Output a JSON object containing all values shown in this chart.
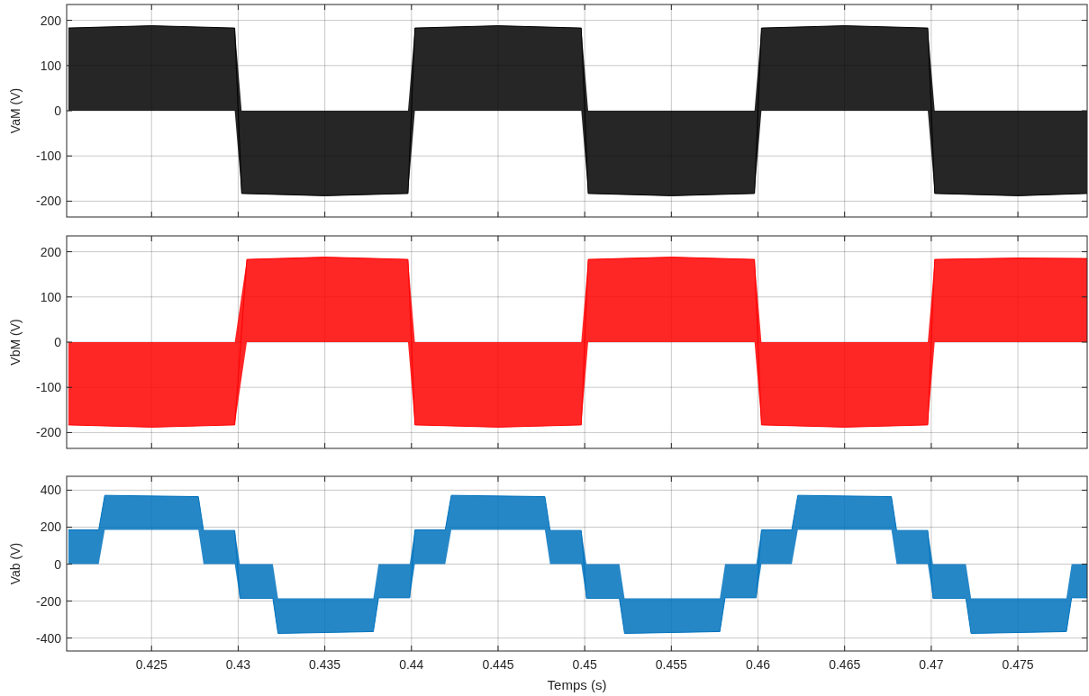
{
  "chart_data": [
    {
      "type": "line",
      "ylabel": "VaM (V)",
      "x": [
        0.4202,
        0.425,
        0.4298,
        0.4302,
        0.435,
        0.4398,
        0.4402,
        0.445,
        0.4498,
        0.4502,
        0.455,
        0.4598,
        0.4602,
        0.465,
        0.4698,
        0.4702,
        0.475,
        0.479
      ],
      "series": [
        {
          "color": "#000000",
          "values": [
            183,
            188,
            183,
            -183,
            -188,
            -183,
            183,
            188,
            183,
            -183,
            -188,
            -183,
            183,
            188,
            183,
            -183,
            -188,
            -183
          ],
          "lower": [
            0,
            0,
            0,
            -183,
            -188,
            -183,
            0,
            0,
            0,
            -183,
            -188,
            -183,
            0,
            0,
            0,
            -183,
            -188,
            -183
          ],
          "upper": [
            183,
            188,
            183,
            0,
            0,
            0,
            183,
            188,
            183,
            0,
            0,
            0,
            183,
            188,
            183,
            0,
            0,
            0
          ]
        }
      ],
      "xlim": [
        0.4201,
        0.479
      ],
      "xticks": [
        0.425,
        0.43,
        0.435,
        0.44,
        0.445,
        0.45,
        0.455,
        0.46,
        0.465,
        0.47,
        0.475
      ],
      "ylim": [
        -235,
        235
      ],
      "yticks": [
        -200,
        -100,
        0,
        100,
        200
      ],
      "grid": true,
      "tick_labels": "y"
    },
    {
      "type": "line",
      "ylabel": "VbM (V)",
      "x": [
        0.4202,
        0.425,
        0.4298,
        0.4305,
        0.435,
        0.4398,
        0.4402,
        0.445,
        0.4498,
        0.4502,
        0.455,
        0.4598,
        0.4602,
        0.465,
        0.4698,
        0.4702,
        0.475,
        0.479
      ],
      "series": [
        {
          "color": "#ff0000",
          "values": [
            -183,
            -188,
            -183,
            183,
            188,
            183,
            -183,
            -188,
            -183,
            183,
            188,
            183,
            -183,
            -188,
            -183,
            183,
            186,
            185
          ],
          "lower": [
            -183,
            -188,
            -183,
            0,
            0,
            0,
            -183,
            -188,
            -183,
            0,
            0,
            0,
            -183,
            -188,
            -183,
            0,
            0,
            0
          ],
          "upper": [
            0,
            0,
            0,
            183,
            188,
            183,
            0,
            0,
            0,
            183,
            188,
            183,
            0,
            0,
            0,
            183,
            186,
            185
          ]
        }
      ],
      "xlim": [
        0.4201,
        0.479
      ],
      "xticks": [
        0.425,
        0.43,
        0.435,
        0.44,
        0.445,
        0.45,
        0.455,
        0.46,
        0.465,
        0.47,
        0.475
      ],
      "ylim": [
        -235,
        235
      ],
      "yticks": [
        -200,
        -100,
        0,
        100,
        200
      ],
      "grid": true,
      "tick_labels": "y"
    },
    {
      "type": "line",
      "ylabel": "Vab (V)",
      "xlabel": "Temps (s)",
      "x": [
        0.4202,
        0.42195,
        0.4223,
        0.4277,
        0.428,
        0.4298,
        0.4301,
        0.432,
        0.4323,
        0.4378,
        0.4381,
        0.4399,
        0.4402,
        0.44195,
        0.4423,
        0.4477,
        0.448,
        0.4498,
        0.4501,
        0.452,
        0.4523,
        0.4578,
        0.4581,
        0.4599,
        0.4602,
        0.46195,
        0.4623,
        0.4677,
        0.468,
        0.4698,
        0.4701,
        0.472,
        0.4723,
        0.4778,
        0.4781,
        0.479
      ],
      "series": [
        {
          "color": "#0072bd",
          "values": [
            185,
            185,
            372,
            365,
            182,
            182,
            -185,
            -185,
            -375,
            -365,
            -182,
            -182,
            185,
            185,
            372,
            365,
            182,
            182,
            -185,
            -185,
            -375,
            -365,
            -182,
            -182,
            185,
            185,
            372,
            365,
            182,
            182,
            -185,
            -185,
            -375,
            -365,
            -182,
            -182
          ],
          "lower": [
            0,
            0,
            185,
            185,
            0,
            0,
            -185,
            -185,
            -375,
            -365,
            -182,
            -182,
            0,
            0,
            185,
            185,
            0,
            0,
            -185,
            -185,
            -375,
            -365,
            -182,
            -182,
            0,
            0,
            185,
            185,
            0,
            0,
            -185,
            -185,
            -375,
            -365,
            -182,
            -182
          ],
          "upper": [
            185,
            185,
            372,
            365,
            182,
            182,
            0,
            0,
            -185,
            -185,
            0,
            0,
            185,
            185,
            372,
            365,
            182,
            182,
            0,
            0,
            -185,
            -185,
            0,
            0,
            185,
            185,
            372,
            365,
            182,
            182,
            0,
            0,
            -185,
            -185,
            0,
            0
          ]
        }
      ],
      "xlim": [
        0.4201,
        0.479
      ],
      "xticks": [
        0.425,
        0.43,
        0.435,
        0.44,
        0.445,
        0.45,
        0.455,
        0.46,
        0.465,
        0.47,
        0.475
      ],
      "ylim": [
        -470,
        475
      ],
      "yticks": [
        -400,
        -200,
        0,
        200,
        400
      ],
      "grid": true
    }
  ]
}
